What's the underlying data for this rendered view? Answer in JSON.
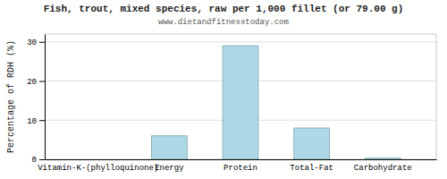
{
  "chart_data": {
    "type": "bar",
    "title": "Fish, trout, mixed species, raw per 1,000 fillet (or 79.00 g)",
    "subtitle": "www.dietandfitnesstoday.com",
    "categories": [
      "Vitamin-K-(phylloquinone)",
      "Energy",
      "Protein",
      "Total-Fat",
      "Carbohydrate"
    ],
    "values": [
      0.0,
      6.0,
      29.0,
      8.0,
      0.3
    ],
    "color": "#add8e6",
    "ylabel": "Percentage of RDH (%)",
    "ylim": [
      0,
      32
    ],
    "yticks": [
      0,
      10,
      20,
      30
    ],
    "grid": true
  }
}
